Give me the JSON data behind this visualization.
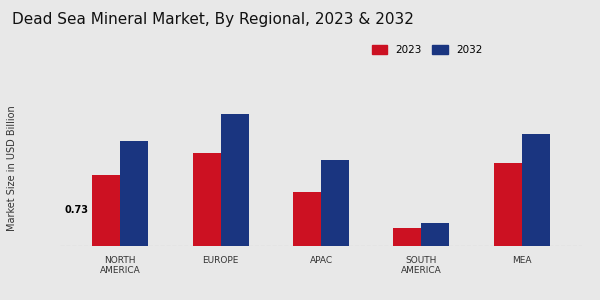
{
  "title": "Dead Sea Mineral Market, By Regional, 2023 & 2032",
  "ylabel": "Market Size in USD Billion",
  "categories": [
    "NORTH\nAMERICA",
    "EUROPE",
    "APAC",
    "SOUTH\nAMERICA",
    "MEA"
  ],
  "values_2023": [
    0.73,
    0.95,
    0.55,
    0.18,
    0.85
  ],
  "values_2032": [
    1.08,
    1.35,
    0.88,
    0.24,
    1.15
  ],
  "color_2023": "#cc1122",
  "color_2032": "#1a3580",
  "bar_width": 0.28,
  "annotation_text": "0.73",
  "background_color": "#e8e8e8",
  "title_fontsize": 11,
  "label_fontsize": 7,
  "tick_fontsize": 6.5,
  "legend_labels": [
    "2023",
    "2032"
  ],
  "ylim": [
    0,
    1.6
  ]
}
